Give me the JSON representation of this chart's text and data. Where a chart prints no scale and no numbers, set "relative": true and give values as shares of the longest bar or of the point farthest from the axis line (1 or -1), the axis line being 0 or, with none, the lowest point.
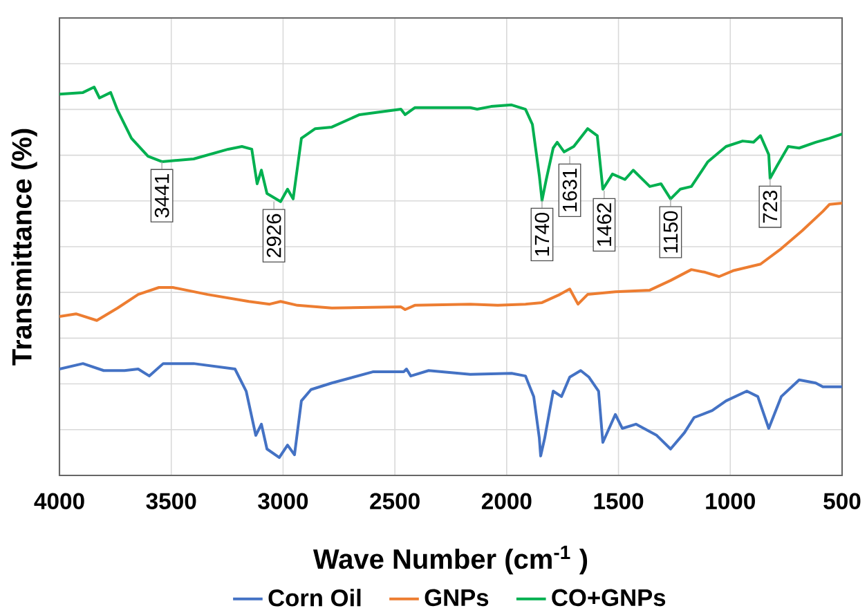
{
  "chart_data": {
    "type": "line",
    "relative": true,
    "xlabel": "Wave Number  (cm$^{-1}$ )",
    "ylabel": "Transmittance (%)",
    "xlim": [
      4000,
      500
    ],
    "xticks": [
      4000,
      3500,
      3000,
      2500,
      2000,
      1500,
      1000,
      500
    ],
    "grid": true,
    "legend": "bottom",
    "tick_labels": "x",
    "line_style": "solid",
    "marker": "none",
    "series": [
      {
        "name": "Corn Oil",
        "color": "#4472c4",
        "x": [
          4000,
          3895,
          3802,
          3709,
          3648,
          3598,
          3536,
          3400,
          3215,
          3165,
          3122,
          3097,
          3072,
          3017,
          2980,
          2949,
          2918,
          2875,
          2782,
          2596,
          2460,
          2448,
          2429,
          2349,
          2163,
          1978,
          1916,
          1879,
          1854,
          1848,
          1830,
          1792,
          1755,
          1718,
          1669,
          1632,
          1589,
          1570,
          1514,
          1483,
          1422,
          1329,
          1267,
          1205,
          1162,
          1081,
          1019,
          926,
          877,
          828,
          772,
          692,
          618,
          586,
          500
        ],
        "values": [
          0.274,
          0.288,
          0.27,
          0.27,
          0.274,
          0.256,
          0.288,
          0.288,
          0.274,
          0.217,
          0.103,
          0.132,
          0.068,
          0.046,
          0.078,
          0.053,
          0.192,
          0.221,
          0.238,
          0.267,
          0.267,
          0.274,
          0.256,
          0.27,
          0.26,
          0.263,
          0.256,
          0.203,
          0.096,
          0.05,
          0.096,
          0.217,
          0.203,
          0.253,
          0.27,
          0.253,
          0.217,
          0.085,
          0.157,
          0.121,
          0.132,
          0.103,
          0.068,
          0.11,
          0.149,
          0.167,
          0.192,
          0.217,
          0.203,
          0.121,
          0.203,
          0.246,
          0.238,
          0.228,
          0.228
        ]
      },
      {
        "name": "GNPs",
        "color": "#ed7d31",
        "x": [
          4000,
          3926,
          3833,
          3740,
          3648,
          3555,
          3493,
          3338,
          3153,
          3060,
          3011,
          2936,
          2782,
          2473,
          2454,
          2411,
          2163,
          2040,
          1916,
          1842,
          1762,
          1718,
          1681,
          1638,
          1514,
          1360,
          1267,
          1174,
          1112,
          1050,
          988,
          865,
          772,
          679,
          586,
          556,
          500
        ],
        "values": [
          0.409,
          0.416,
          0.399,
          0.431,
          0.466,
          0.484,
          0.484,
          0.466,
          0.448,
          0.441,
          0.448,
          0.438,
          0.431,
          0.434,
          0.427,
          0.438,
          0.441,
          0.438,
          0.441,
          0.445,
          0.466,
          0.48,
          0.441,
          0.466,
          0.473,
          0.477,
          0.502,
          0.53,
          0.523,
          0.512,
          0.527,
          0.544,
          0.584,
          0.63,
          0.68,
          0.698,
          0.701
        ]
      },
      {
        "name": "CO+GNPs",
        "color": "#00b050",
        "x": [
          4000,
          3895,
          3845,
          3821,
          3771,
          3740,
          3678,
          3604,
          3542,
          3400,
          3245,
          3184,
          3140,
          3116,
          3097,
          3072,
          3011,
          2980,
          2955,
          2918,
          2856,
          2782,
          2658,
          2473,
          2454,
          2411,
          2163,
          2132,
          2070,
          1978,
          1916,
          1885,
          1854,
          1842,
          1823,
          1792,
          1774,
          1743,
          1700,
          1638,
          1595,
          1570,
          1527,
          1471,
          1434,
          1360,
          1310,
          1267,
          1224,
          1174,
          1100,
          1019,
          945,
          896,
          865,
          828,
          822,
          791,
          741,
          692,
          618,
          556,
          500
        ],
        "values": [
          0.982,
          0.986,
          1.0,
          0.972,
          0.986,
          0.94,
          0.868,
          0.822,
          0.808,
          0.815,
          0.84,
          0.847,
          0.84,
          0.751,
          0.786,
          0.726,
          0.705,
          0.737,
          0.712,
          0.868,
          0.893,
          0.897,
          0.929,
          0.943,
          0.929,
          0.947,
          0.947,
          0.943,
          0.95,
          0.954,
          0.943,
          0.904,
          0.772,
          0.708,
          0.762,
          0.843,
          0.858,
          0.833,
          0.847,
          0.893,
          0.875,
          0.737,
          0.776,
          0.762,
          0.786,
          0.744,
          0.751,
          0.712,
          0.737,
          0.744,
          0.808,
          0.847,
          0.861,
          0.858,
          0.875,
          0.826,
          0.765,
          0.797,
          0.847,
          0.843,
          0.858,
          0.868,
          0.879
        ]
      }
    ],
    "annotations": [
      {
        "text": "3441",
        "x": 3542,
        "y": 0.808
      },
      {
        "text": "2926",
        "x": 3041,
        "y": 0.705
      },
      {
        "text": "1740",
        "x": 1842,
        "y": 0.708
      },
      {
        "text": "1631",
        "x": 1718,
        "y": 0.822
      },
      {
        "text": "1462",
        "x": 1564,
        "y": 0.733
      },
      {
        "text": "1150",
        "x": 1267,
        "y": 0.712
      },
      {
        "text": "723",
        "x": 822,
        "y": 0.765
      }
    ]
  }
}
